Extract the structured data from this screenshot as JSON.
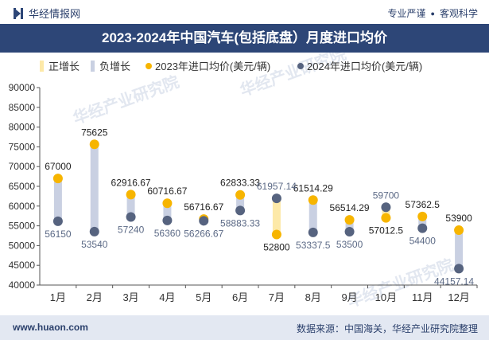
{
  "header": {
    "brand": "华经情报网",
    "right_a": "专业严谨",
    "right_b": "客观科学"
  },
  "title": "2023-2024年中国汽车(包括底盘）月度进口均价",
  "footer": {
    "url": "www.huaon.com",
    "source": "数据来源：中国海关，华经产业研究院整理"
  },
  "watermark": "华经产业研究院",
  "colors": {
    "pos_bar": "#fde9a8",
    "neg_bar": "#c9d0e2",
    "series_2023": "#f7b500",
    "series_2024": "#56637f",
    "title_bg": "#2d4677"
  },
  "chart_data": {
    "type": "line",
    "title": "2023-2024年中国汽车(包括底盘）月度进口均价",
    "categories": [
      "1月",
      "2月",
      "3月",
      "4月",
      "5月",
      "6月",
      "7月",
      "8月",
      "9月",
      "10月",
      "11月",
      "12月"
    ],
    "series": [
      {
        "name": "2023年进口均价(美元/辆)",
        "values": [
          67000,
          75625,
          62916.67,
          60716.67,
          56716.67,
          62833.33,
          52800,
          61514.29,
          56514.29,
          57012.5,
          57362.5,
          53900
        ]
      },
      {
        "name": "2024年进口均价(美元/辆)",
        "values": [
          56150,
          53540,
          57240,
          56360,
          56266.67,
          58883.33,
          61957.14,
          53337.5,
          53500,
          59700,
          54400,
          44157.14
        ]
      }
    ],
    "labels_2023": [
      "67000",
      "75625",
      "62916.67",
      "60716.67",
      "56716.67",
      "62833.33",
      "52800",
      "61514.29",
      "56514.29",
      "57012.5",
      "57362.5",
      "53900"
    ],
    "labels_2024": [
      "56150",
      "53540",
      "57240",
      "56360",
      "56266.67",
      "58883.33",
      "61957.14",
      "53337.5",
      "53500",
      "59700",
      "54400",
      "44157.14"
    ],
    "legend": [
      "正增长",
      "负增长",
      "2023年进口均价(美元/辆)",
      "2024年进口均价(美元/辆)"
    ],
    "legend_position": "top",
    "ylim": [
      40000,
      90000
    ],
    "yticks": [
      40000,
      45000,
      50000,
      55000,
      60000,
      65000,
      70000,
      75000,
      80000,
      85000,
      90000
    ],
    "ytick_labels": [
      "40000",
      "45000",
      "50000",
      "55000",
      "60000",
      "65000",
      "70000",
      "75000",
      "80000",
      "85000",
      "90000"
    ],
    "grid": false
  }
}
